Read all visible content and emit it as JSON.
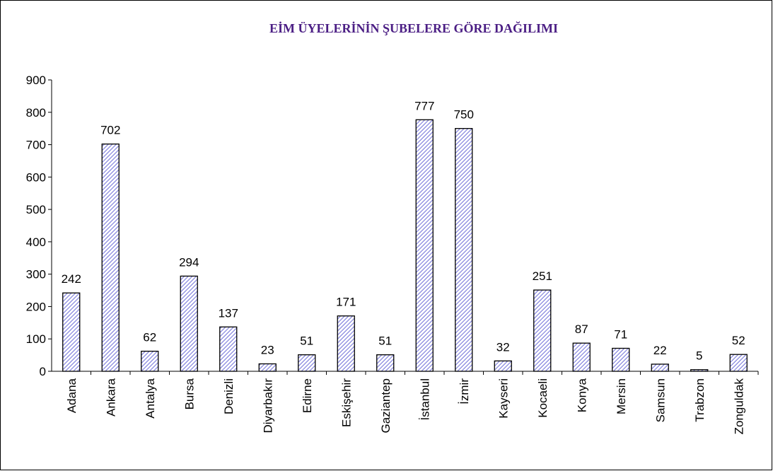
{
  "chart_data": {
    "type": "bar",
    "title": "EİM ÜYELERİNİN ŞUBELERE GÖRE DAĞILIMI",
    "categories": [
      "Adana",
      "Ankara",
      "Antalya",
      "Bursa",
      "Denizli",
      "Diyarbakır",
      "Edirne",
      "Eskişehir",
      "Gaziantep",
      "İstanbul",
      "İzmir",
      "Kayseri",
      "Kocaeli",
      "Konya",
      "Mersin",
      "Samsun",
      "Trabzon",
      "Zonguldak"
    ],
    "values": [
      242,
      702,
      62,
      294,
      137,
      23,
      51,
      171,
      51,
      777,
      750,
      32,
      251,
      87,
      71,
      22,
      5,
      52
    ],
    "color": "#6f6fd8",
    "ylim": [
      0,
      900
    ],
    "yticks": [
      0,
      100,
      200,
      300,
      400,
      500,
      600,
      700,
      800,
      900
    ],
    "grid": false
  }
}
